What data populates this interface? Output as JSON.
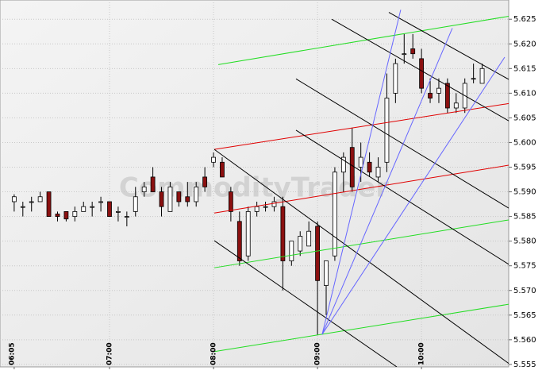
{
  "chart_data": {
    "type": "candlestick",
    "watermark": "CommodityTrader",
    "categories": [
      "06:05",
      null,
      null,
      null,
      null,
      null,
      null,
      null,
      null,
      null,
      null,
      "07:00",
      null,
      null,
      null,
      null,
      null,
      null,
      null,
      null,
      null,
      null,
      null,
      "08:00",
      null,
      null,
      null,
      null,
      null,
      null,
      null,
      null,
      null,
      null,
      null,
      "09:00",
      null,
      null,
      null,
      null,
      null,
      null,
      null,
      null,
      null,
      null,
      null,
      "10:00",
      null,
      null,
      null,
      null,
      null,
      null,
      null
    ],
    "open": [
      5.588,
      5.587,
      5.588,
      5.588,
      5.59,
      5.5855,
      5.586,
      5.585,
      5.586,
      5.587,
      5.588,
      5.588,
      5.586,
      5.585,
      5.586,
      5.59,
      5.593,
      5.59,
      5.586,
      5.59,
      5.589,
      5.588,
      5.593,
      5.596,
      5.596,
      5.59,
      5.584,
      5.577,
      5.586,
      5.587,
      5.587,
      5.587,
      5.576,
      5.578,
      5.579,
      5.583,
      5.571,
      5.577,
      5.594,
      5.599,
      5.595,
      5.596,
      5.593,
      5.596,
      5.61,
      5.618,
      5.619,
      5.617,
      5.61,
      5.61,
      5.612,
      5.607,
      5.607,
      5.613,
      5.612
    ],
    "high": [
      5.5895,
      5.588,
      5.589,
      5.59,
      5.59,
      5.586,
      5.586,
      5.587,
      5.588,
      5.588,
      5.589,
      5.588,
      5.587,
      5.586,
      5.591,
      5.592,
      5.595,
      5.591,
      5.592,
      5.59,
      5.592,
      5.592,
      5.595,
      5.598,
      5.597,
      5.591,
      5.586,
      5.587,
      5.588,
      5.588,
      5.589,
      5.589,
      5.58,
      5.582,
      5.584,
      5.584,
      5.576,
      5.595,
      5.598,
      5.603,
      5.6,
      5.598,
      5.597,
      5.614,
      5.617,
      5.622,
      5.622,
      5.619,
      5.613,
      5.613,
      5.613,
      5.61,
      5.613,
      5.616,
      5.616
    ],
    "low": [
      5.586,
      5.585,
      5.586,
      5.588,
      5.585,
      5.584,
      5.584,
      5.584,
      5.586,
      5.585,
      5.586,
      5.585,
      5.584,
      5.583,
      5.585,
      5.589,
      5.59,
      5.585,
      5.586,
      5.587,
      5.587,
      5.587,
      5.59,
      5.595,
      5.593,
      5.584,
      5.575,
      5.576,
      5.585,
      5.586,
      5.586,
      5.57,
      5.575,
      5.577,
      5.579,
      5.561,
      5.565,
      5.576,
      5.59,
      5.59,
      5.592,
      5.593,
      5.592,
      5.594,
      5.608,
      5.616,
      5.617,
      5.61,
      5.608,
      5.608,
      5.606,
      5.606,
      5.606,
      5.612,
      5.612
    ],
    "close": [
      5.589,
      5.587,
      5.588,
      5.589,
      5.585,
      5.585,
      5.5845,
      5.586,
      5.587,
      5.587,
      5.588,
      5.585,
      5.586,
      5.585,
      5.589,
      5.591,
      5.59,
      5.587,
      5.591,
      5.588,
      5.588,
      5.591,
      5.591,
      5.597,
      5.593,
      5.586,
      5.576,
      5.586,
      5.587,
      5.587,
      5.588,
      5.576,
      5.58,
      5.581,
      5.582,
      5.572,
      5.576,
      5.594,
      5.597,
      5.591,
      5.597,
      5.594,
      5.595,
      5.609,
      5.616,
      5.618,
      5.618,
      5.611,
      5.609,
      5.611,
      5.607,
      5.608,
      5.612,
      5.613,
      5.615
    ],
    "up_color": "#ffffff",
    "down_color": "#8b1010",
    "ylim": [
      5.5545,
      5.6289
    ],
    "yticks": [
      5.555,
      {
        "value": 5.56,
        "label": "5.560"
      },
      5.565,
      {
        "value": 5.57,
        "label": "5.570"
      },
      5.575,
      {
        "value": 5.58,
        "label": "5.580"
      },
      5.585,
      {
        "value": 5.59,
        "label": "5.590"
      },
      5.595,
      {
        "value": 5.6,
        "label": "5.600"
      },
      5.605,
      {
        "value": 5.61,
        "label": "5.610"
      },
      5.615,
      {
        "value": 5.62,
        "label": "5.620"
      },
      5.625
    ],
    "grid": true,
    "trendlines": [
      {
        "color": "#e00000",
        "x": [
          23.09,
          57.06
        ],
        "y": [
          5.5986,
          5.6079
        ]
      },
      {
        "color": "#e00000",
        "x": [
          23.09,
          57.06
        ],
        "y": [
          5.5857,
          5.5954
        ]
      },
      {
        "color": "#22dd22",
        "x": [
          23.55,
          57.06
        ],
        "y": [
          5.6158,
          5.6256
        ]
      },
      {
        "color": "#22dd22",
        "x": [
          23.09,
          57.06
        ],
        "y": [
          5.5746,
          5.5843
        ]
      },
      {
        "color": "#22dd22",
        "x": [
          23.09,
          57.06
        ],
        "y": [
          5.5576,
          5.5672
        ]
      },
      {
        "color": "#000000",
        "x": [
          36.64,
          57.06
        ],
        "y": [
          5.625,
          5.6044
        ]
      },
      {
        "color": "#000000",
        "x": [
          32.52,
          57.06
        ],
        "y": [
          5.6129,
          5.5867
        ]
      },
      {
        "color": "#000000",
        "x": [
          32.52,
          57.06
        ],
        "y": [
          5.6025,
          5.5753
        ]
      },
      {
        "color": "#000000",
        "x": [
          23.09,
          57.06
        ],
        "y": [
          5.5986,
          5.5552
        ]
      },
      {
        "color": "#000000",
        "x": [
          23.09,
          44.15
        ],
        "y": [
          5.5801,
          5.5545
        ]
      },
      {
        "color": "#000000",
        "x": [
          43.23,
          57.06
        ],
        "y": [
          5.6264,
          5.6128
        ]
      },
      {
        "color": "#6666ff",
        "x": [
          35.54,
          44.6
        ],
        "y": [
          5.5611,
          5.6269
        ]
      },
      {
        "color": "#6666ff",
        "x": [
          35.54,
          50.56
        ],
        "y": [
          5.5611,
          5.6232
        ]
      },
      {
        "color": "#6666ff",
        "x": [
          35.54,
          56.6
        ],
        "y": [
          5.5611,
          5.6173
        ]
      }
    ]
  }
}
